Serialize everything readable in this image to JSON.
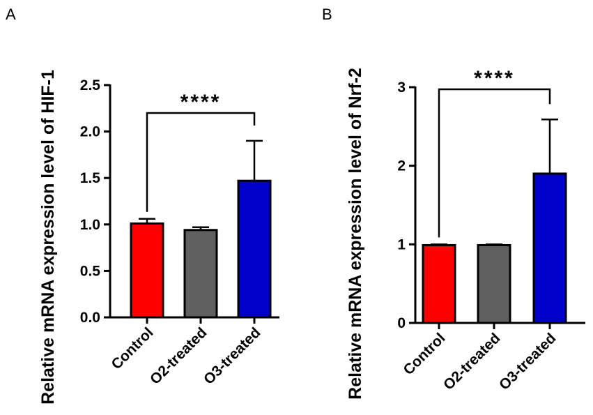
{
  "chart_data": [
    {
      "panel_label": "A",
      "type": "bar",
      "ylabel": "Relative mRNA expression level of HIF-1",
      "ylim": [
        0,
        2.5
      ],
      "yticks": [
        "0.0",
        "0.5",
        "1.0",
        "1.5",
        "2.0",
        "2.5"
      ],
      "categories": [
        "Control",
        "O2-treated",
        "O3-treated"
      ],
      "values": [
        1.01,
        0.94,
        1.47
      ],
      "errors": [
        0.05,
        0.03,
        0.43
      ],
      "colors": [
        "#ff0000",
        "#606060",
        "#0000c8"
      ],
      "significance": {
        "from": "Control",
        "to": "O3-treated",
        "label": "****"
      }
    },
    {
      "panel_label": "B",
      "type": "bar",
      "ylabel": "Relative mRNA expression level of Nrf-2",
      "ylim": [
        0,
        3
      ],
      "yticks": [
        "0",
        "1",
        "2",
        "3"
      ],
      "categories": [
        "Control",
        "O2-treated",
        "O3-treated"
      ],
      "values": [
        0.99,
        0.99,
        1.9
      ],
      "errors": [
        0.01,
        0.01,
        0.69
      ],
      "colors": [
        "#ff0000",
        "#606060",
        "#0000c8"
      ],
      "significance": {
        "from": "Control",
        "to": "O3-treated",
        "label": "****"
      }
    }
  ]
}
